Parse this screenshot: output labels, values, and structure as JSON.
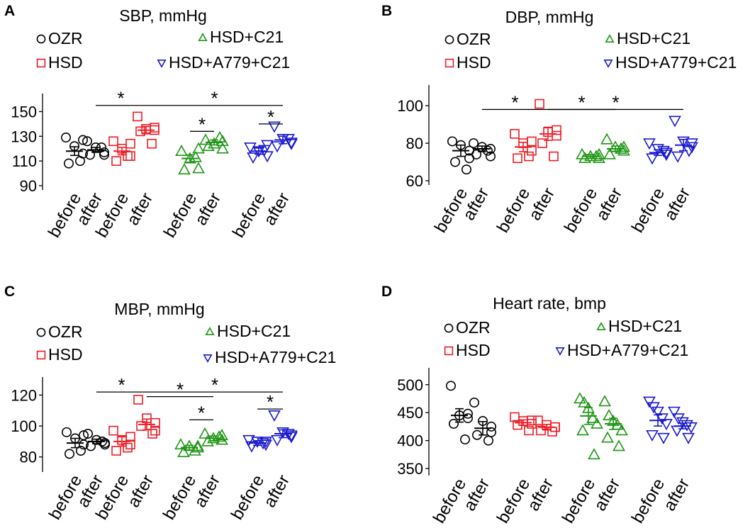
{
  "colors": {
    "OZR": "#000000",
    "HSD": "#ee1c25",
    "HSD+C21": "#1e9614",
    "HSD+A779+C21": "#1a1acc"
  },
  "legend_markers": {
    "OZR": "circle",
    "HSD": "square",
    "HSD+C21": "triangle-up",
    "HSD+A779+C21": "triangle-down"
  },
  "chart_data": [
    {
      "panel_letter": "A",
      "title": "SBP, mmHg",
      "type": "scatter",
      "legend": [
        "OZR",
        "HSD",
        "HSD+C21",
        "HSD+A779+C21"
      ],
      "xtick_labels": [
        "before",
        "after",
        "before",
        "after",
        "before",
        "after",
        "before",
        "after"
      ],
      "yticks": [
        90,
        110,
        130,
        150
      ],
      "ylim": [
        90,
        160
      ],
      "groups": [
        {
          "series": "OZR",
          "label": "before",
          "mean": 118,
          "sem": 3.5,
          "values": [
            129,
            122,
            116,
            108,
            110,
            127
          ]
        },
        {
          "series": "OZR",
          "label": "after",
          "mean": 119,
          "sem": 2,
          "values": [
            126,
            121,
            117,
            115,
            121,
            115
          ]
        },
        {
          "series": "HSD",
          "label": "before",
          "mean": 118,
          "sem": 3,
          "values": [
            126,
            120,
            114,
            110,
            114,
            124
          ]
        },
        {
          "series": "HSD",
          "label": "after",
          "mean": 135,
          "sem": 3,
          "values": [
            146,
            136,
            135,
            134,
            124,
            137
          ]
        },
        {
          "series": "HSD+C21",
          "label": "before",
          "mean": 112,
          "sem": 3,
          "values": [
            118,
            112,
            104,
            103,
            113,
            120
          ]
        },
        {
          "series": "HSD+C21",
          "label": "after",
          "mean": 125,
          "sem": 2,
          "values": [
            127,
            124,
            120,
            122,
            129,
            126
          ]
        },
        {
          "series": "HSD+A779+C21",
          "label": "before",
          "mean": 118,
          "sem": 2.5,
          "values": [
            121,
            118,
            114,
            113,
            119,
            123
          ]
        },
        {
          "series": "HSD+A779+C21",
          "label": "after",
          "mean": 127,
          "sem": 3,
          "values": [
            138,
            128,
            124,
            122,
            128,
            125
          ]
        }
      ],
      "significance_marks": [
        {
          "label": "*",
          "from_group": 1,
          "to_group": 3,
          "level": 155
        },
        {
          "label": "*",
          "from_group": 3,
          "to_group": 7,
          "level": 155
        },
        {
          "label": "*",
          "from_group": 4,
          "to_group": 5,
          "level": 134
        },
        {
          "label": "*",
          "from_group": 6,
          "to_group": 7,
          "level": 140
        }
      ]
    },
    {
      "panel_letter": "B",
      "title": "DBP, mmHg",
      "type": "scatter",
      "legend": [
        "OZR",
        "HSD",
        "HSD+C21",
        "HSD+A779+C21"
      ],
      "xtick_labels": [
        "before",
        "after",
        "before",
        "after",
        "before",
        "after",
        "before",
        "after"
      ],
      "yticks": [
        60,
        80,
        100
      ],
      "ylim": [
        60,
        108
      ],
      "groups": [
        {
          "series": "OZR",
          "label": "before",
          "mean": 76,
          "sem": 3,
          "values": [
            81,
            79,
            76,
            70,
            66,
            72
          ]
        },
        {
          "series": "OZR",
          "label": "after",
          "mean": 77,
          "sem": 1.5,
          "values": [
            80,
            78,
            77,
            74,
            76,
            73
          ]
        },
        {
          "series": "HSD",
          "label": "before",
          "mean": 78,
          "sem": 2.5,
          "values": [
            85,
            80,
            76,
            72,
            73,
            81
          ]
        },
        {
          "series": "HSD",
          "label": "after",
          "mean": 85,
          "sem": 3.5,
          "values": [
            101,
            86,
            84,
            80,
            73,
            87
          ]
        },
        {
          "series": "HSD+C21",
          "label": "before",
          "mean": 73,
          "sem": 1,
          "values": [
            74,
            73,
            72,
            72,
            73,
            74
          ]
        },
        {
          "series": "HSD+C21",
          "label": "after",
          "mean": 77,
          "sem": 1.5,
          "values": [
            82,
            78,
            76,
            74,
            77,
            78
          ]
        },
        {
          "series": "HSD+A779+C21",
          "label": "before",
          "mean": 75,
          "sem": 1.5,
          "values": [
            80,
            77,
            74,
            72,
            76,
            75
          ]
        },
        {
          "series": "HSD+A779+C21",
          "label": "after",
          "mean": 79,
          "sem": 3,
          "values": [
            92,
            81,
            78,
            73,
            76,
            80
          ]
        }
      ],
      "significance_marks": [
        {
          "label": "*",
          "from_group": 1,
          "to_group": 3,
          "level": 98
        },
        {
          "label": "*",
          "from_group": 3,
          "to_group": 5,
          "level": 98
        },
        {
          "label": "*",
          "from_group": 3,
          "to_group": 7,
          "level": 98
        }
      ]
    },
    {
      "panel_letter": "C",
      "title": "MBP, mmHg",
      "type": "scatter",
      "legend": [
        "OZR",
        "HSD",
        "HSD+C21",
        "HSD+A779+C21"
      ],
      "xtick_labels": [
        "before",
        "after",
        "before",
        "after",
        "before",
        "after",
        "before",
        "after"
      ],
      "yticks": [
        80,
        100,
        120
      ],
      "ylim": [
        73,
        128
      ],
      "groups": [
        {
          "series": "OZR",
          "label": "before",
          "mean": 89,
          "sem": 3,
          "values": [
            96,
            92,
            88,
            82,
            84,
            94
          ]
        },
        {
          "series": "OZR",
          "label": "after",
          "mean": 90,
          "sem": 1.5,
          "values": [
            95,
            91,
            89,
            87,
            90,
            88
          ]
        },
        {
          "series": "HSD",
          "label": "before",
          "mean": 90,
          "sem": 3,
          "values": [
            97,
            91,
            88,
            84,
            86,
            93
          ]
        },
        {
          "series": "HSD",
          "label": "after",
          "mean": 101,
          "sem": 3.5,
          "values": [
            117,
            105,
            102,
            100,
            95,
            97
          ]
        },
        {
          "series": "HSD+C21",
          "label": "before",
          "mean": 86,
          "sem": 1.5,
          "values": [
            88,
            87,
            86,
            83,
            84,
            87
          ]
        },
        {
          "series": "HSD+C21",
          "label": "after",
          "mean": 92,
          "sem": 1.5,
          "values": [
            95,
            92,
            91,
            90,
            93,
            94
          ]
        },
        {
          "series": "HSD+A779+C21",
          "label": "before",
          "mean": 89,
          "sem": 1.5,
          "values": [
            91,
            90,
            88,
            87,
            89,
            90
          ]
        },
        {
          "series": "HSD+A779+C21",
          "label": "after",
          "mean": 95,
          "sem": 2.5,
          "values": [
            107,
            96,
            93,
            91,
            95,
            94
          ]
        }
      ],
      "significance_marks": [
        {
          "label": "*",
          "from_group": 1,
          "to_group": 3,
          "level": 122
        },
        {
          "label": "*",
          "from_group": 3,
          "to_group": 5,
          "level": 119
        },
        {
          "label": "*",
          "from_group": 3,
          "to_group": 7,
          "level": 122
        },
        {
          "label": "*",
          "from_group": 4,
          "to_group": 5,
          "level": 104
        },
        {
          "label": "*",
          "from_group": 6,
          "to_group": 7,
          "level": 111
        }
      ]
    },
    {
      "panel_letter": "D",
      "title": "Heart rate, bmp",
      "type": "scatter",
      "legend": [
        "OZR",
        "HSD",
        "HSD+C21",
        "HSD+A779+C21"
      ],
      "xtick_labels": [
        "before",
        "after",
        "before",
        "after",
        "before",
        "after",
        "before",
        "after"
      ],
      "yticks": [
        350,
        400,
        450,
        500
      ],
      "ylim": [
        345,
        520
      ],
      "groups": [
        {
          "series": "OZR",
          "label": "before",
          "mean": 445,
          "sem": 12,
          "values": [
            498,
            445,
            440,
            430,
            402,
            448
          ]
        },
        {
          "series": "OZR",
          "label": "after",
          "mean": 422,
          "sem": 12,
          "values": [
            468,
            435,
            425,
            410,
            400,
            415
          ]
        },
        {
          "series": "HSD",
          "label": "before",
          "mean": 432,
          "sem": 5,
          "values": [
            442,
            435,
            430,
            428,
            418,
            436
          ]
        },
        {
          "series": "HSD",
          "label": "after",
          "mean": 424,
          "sem": 5,
          "values": [
            436,
            428,
            424,
            418,
            416,
            424
          ]
        },
        {
          "series": "HSD+C21",
          "label": "before",
          "mean": 444,
          "sem": 15,
          "values": [
            475,
            468,
            458,
            440,
            430,
            418,
            375
          ]
        },
        {
          "series": "HSD+C21",
          "label": "after",
          "mean": 430,
          "sem": 10,
          "values": [
            470,
            445,
            435,
            428,
            418,
            405,
            390
          ]
        },
        {
          "series": "HSD+A779+C21",
          "label": "before",
          "mean": 436,
          "sem": 10,
          "values": [
            470,
            460,
            452,
            440,
            430,
            410,
            405
          ]
        },
        {
          "series": "HSD+A779+C21",
          "label": "after",
          "mean": 426,
          "sem": 5,
          "values": [
            452,
            440,
            433,
            428,
            424,
            418,
            405
          ]
        }
      ],
      "significance_marks": []
    }
  ]
}
